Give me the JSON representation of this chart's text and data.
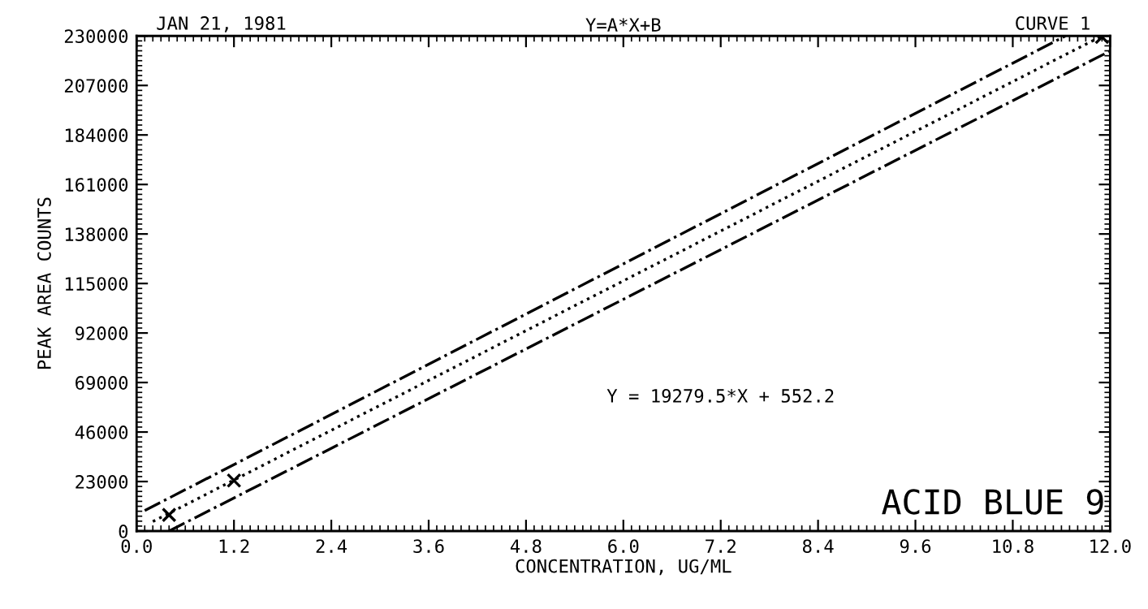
{
  "chart_data": {
    "type": "line",
    "title": "Y=A*X+B",
    "xlabel": "CONCENTRATION, UG/ML",
    "ylabel": "PEAK AREA COUNTS",
    "annotations": [
      "JAN 21, 1981",
      "CURVE 1",
      "Y = 19279.5*X + 552.2",
      "ACID BLUE 9"
    ],
    "series": [
      {
        "type": "line",
        "color": "#000000",
        "line_style": "dashdot",
        "marker": "none",
        "x": [
          0.1,
          11.45
        ],
        "values": [
          9500,
          230000
        ]
      },
      {
        "color": "#000000",
        "line_style": "dotted",
        "marker": "none",
        "x": [
          0.2,
          11.9
        ],
        "values": [
          4400,
          230000
        ]
      },
      {
        "type": "line",
        "color": "#000000",
        "line_style": "dashdot",
        "marker": "none",
        "x": [
          0.4,
          12.0
        ],
        "values": [
          0,
          223000
        ]
      },
      {
        "type": "scatter",
        "color": "#000000",
        "marker": "cross",
        "x": [
          0.4,
          1.2,
          11.9
        ],
        "values": [
          7500,
          23500,
          229500
        ]
      }
    ],
    "xlim": [
      0,
      12
    ],
    "ylim": [
      0,
      230000
    ],
    "xticks": [
      {
        "value": 0,
        "label": "0.0"
      },
      1.2,
      2.4,
      3.6,
      4.8,
      {
        "value": 6,
        "label": "6.0"
      },
      7.2,
      8.4,
      9.6,
      10.8,
      {
        "value": 12,
        "label": "12.0"
      }
    ],
    "yticks": [
      0,
      23000,
      46000,
      69000,
      92000,
      115000,
      138000,
      161000,
      184000,
      207000,
      230000
    ],
    "grid": false
  }
}
